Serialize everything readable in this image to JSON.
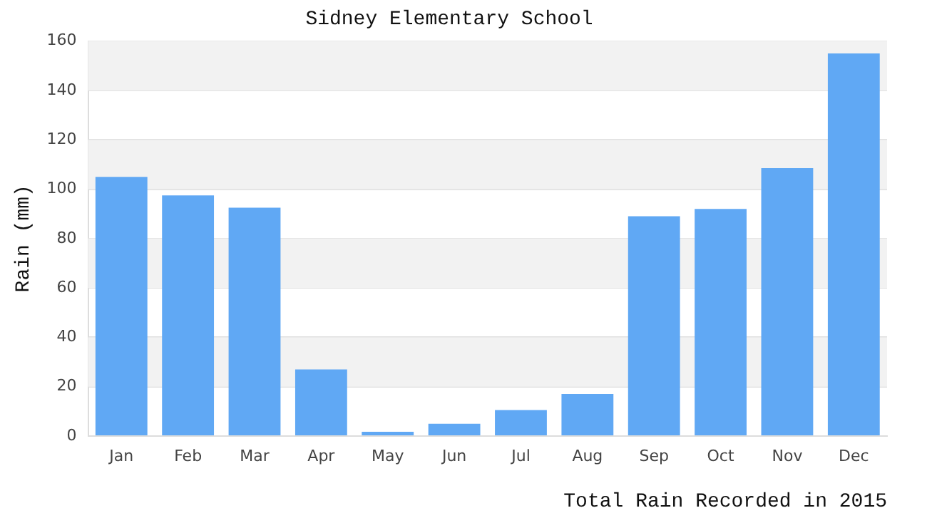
{
  "chart_data": {
    "type": "bar",
    "title": "Sidney Elementary School",
    "xlabel": "Total Rain Recorded in 2015",
    "ylabel": "Rain (mm)",
    "categories": [
      "Jan",
      "Feb",
      "Mar",
      "Apr",
      "May",
      "Jun",
      "Jul",
      "Aug",
      "Sep",
      "Oct",
      "Nov",
      "Dec"
    ],
    "values": [
      105,
      97.5,
      92.5,
      27,
      1.7,
      5,
      10.5,
      17,
      89,
      92,
      108.5,
      155
    ],
    "color": "#60a8f4",
    "ylim": [
      0,
      160
    ],
    "yticks": [
      0,
      20,
      40,
      60,
      80,
      100,
      120,
      140,
      160
    ],
    "grid": "y",
    "legend": false
  }
}
